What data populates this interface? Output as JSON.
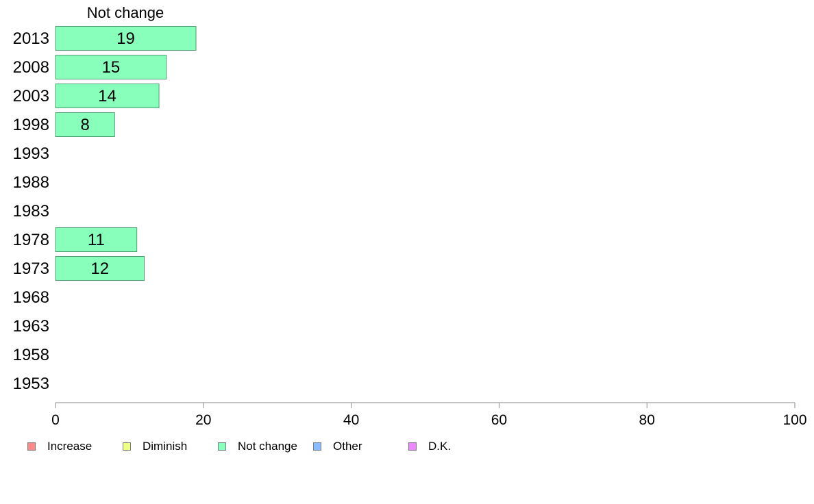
{
  "chart_data": {
    "type": "bar",
    "orientation": "horizontal",
    "title": "Not change",
    "categories": [
      "2013",
      "2008",
      "2003",
      "1998",
      "1993",
      "1988",
      "1983",
      "1978",
      "1973",
      "1968",
      "1963",
      "1958",
      "1953"
    ],
    "series": [
      {
        "name": "Not change",
        "values": [
          19,
          15,
          14,
          8,
          null,
          null,
          null,
          11,
          12,
          null,
          null,
          null,
          null
        ],
        "color": "#88ffbb"
      }
    ],
    "xlim": [
      0,
      100
    ],
    "xticks": [
      "0",
      "20",
      "40",
      "60",
      "80",
      "100"
    ],
    "xlabel": "",
    "ylabel": "",
    "grid": false,
    "legend_position": "bottom-left"
  },
  "legend": {
    "items": [
      {
        "label": "Increase",
        "color": "#ff8888"
      },
      {
        "label": "Diminish",
        "color": "#eeff88"
      },
      {
        "label": "Not change",
        "color": "#88ffbb"
      },
      {
        "label": "Other",
        "color": "#88bbff"
      },
      {
        "label": "D.K.",
        "color": "#ee88ff"
      }
    ]
  }
}
